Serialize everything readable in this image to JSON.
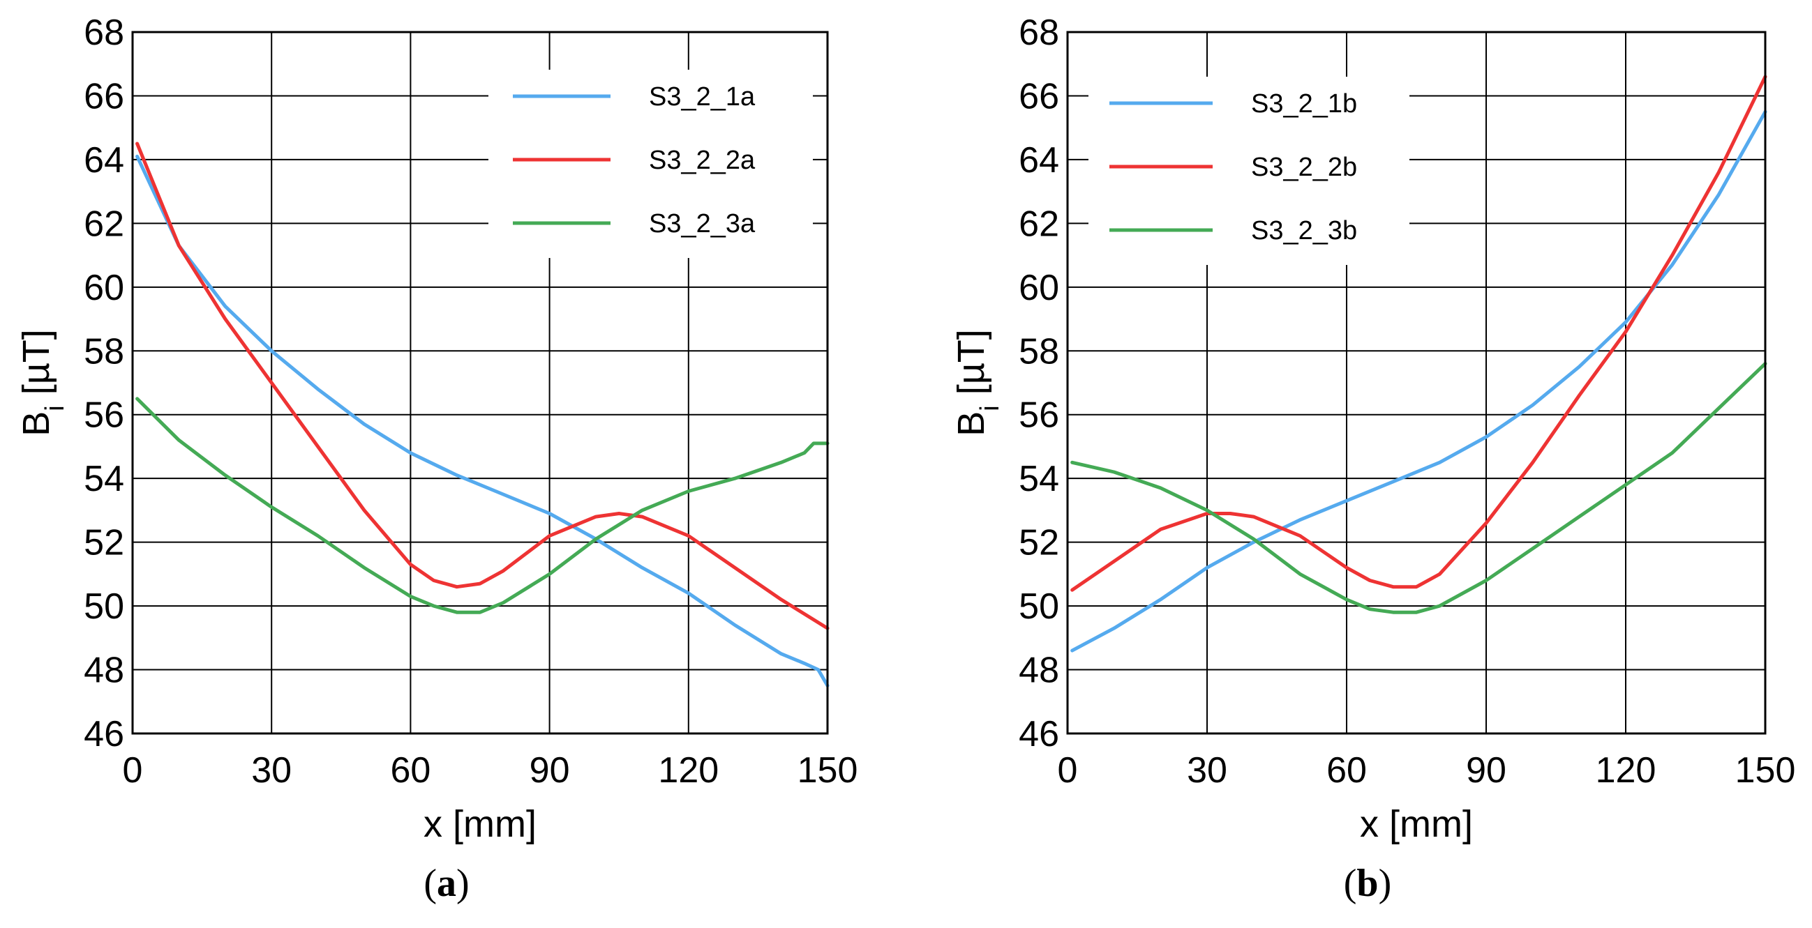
{
  "chart_data": [
    {
      "type": "line",
      "panel": "a",
      "caption_open": "(",
      "caption_letter": "a",
      "caption_close": ")",
      "xlabel": "x [mm]",
      "ylabel_main": "B",
      "ylabel_sub": "i",
      "ylabel_rest": " [µT]",
      "xlim": [
        0,
        150
      ],
      "ylim": [
        46,
        68
      ],
      "xticks": [
        0,
        30,
        60,
        90,
        120,
        150
      ],
      "yticks": [
        46,
        48,
        50,
        52,
        54,
        56,
        58,
        60,
        62,
        64,
        66,
        68
      ],
      "grid": true,
      "legend_position": "top-right",
      "series": [
        {
          "name": "S3_2_1a",
          "color": "#55aaee",
          "x": [
            1,
            10,
            20,
            30,
            40,
            50,
            60,
            70,
            80,
            90,
            100,
            110,
            120,
            130,
            140,
            145,
            148,
            150
          ],
          "y": [
            64.1,
            61.3,
            59.4,
            58.0,
            56.8,
            55.7,
            54.8,
            54.1,
            53.5,
            52.9,
            52.1,
            51.2,
            50.4,
            49.4,
            48.5,
            48.2,
            48.0,
            47.5
          ]
        },
        {
          "name": "S3_2_2a",
          "color": "#ee3333",
          "x": [
            1,
            10,
            20,
            30,
            40,
            50,
            60,
            65,
            70,
            75,
            80,
            90,
            100,
            105,
            110,
            120,
            130,
            140,
            150
          ],
          "y": [
            64.5,
            61.3,
            59.0,
            57.0,
            55.0,
            53.0,
            51.3,
            50.8,
            50.6,
            50.7,
            51.1,
            52.2,
            52.8,
            52.9,
            52.8,
            52.2,
            51.2,
            50.2,
            49.3
          ]
        },
        {
          "name": "S3_2_3a",
          "color": "#44aa55",
          "x": [
            1,
            10,
            20,
            30,
            40,
            50,
            60,
            65,
            70,
            75,
            80,
            90,
            100,
            110,
            120,
            130,
            140,
            145,
            147,
            150
          ],
          "y": [
            56.5,
            55.2,
            54.1,
            53.1,
            52.2,
            51.2,
            50.3,
            50.0,
            49.8,
            49.8,
            50.1,
            51.0,
            52.1,
            53.0,
            53.6,
            54.0,
            54.5,
            54.8,
            55.1,
            55.1
          ]
        }
      ]
    },
    {
      "type": "line",
      "panel": "b",
      "caption_open": "(",
      "caption_letter": "b",
      "caption_close": ")",
      "xlabel": "x [mm]",
      "ylabel_main": "B",
      "ylabel_sub": "i",
      "ylabel_rest": " [µT]",
      "xlim": [
        0,
        150
      ],
      "ylim": [
        46,
        68
      ],
      "xticks": [
        0,
        30,
        60,
        90,
        120,
        150
      ],
      "yticks": [
        46,
        48,
        50,
        52,
        54,
        56,
        58,
        60,
        62,
        64,
        66,
        68
      ],
      "grid": true,
      "legend_position": "top-left",
      "series": [
        {
          "name": "S3_2_1b",
          "color": "#55aaee",
          "x": [
            1,
            10,
            20,
            30,
            40,
            50,
            60,
            70,
            80,
            90,
            100,
            110,
            120,
            130,
            140,
            150
          ],
          "y": [
            48.6,
            49.3,
            50.2,
            51.2,
            52.0,
            52.7,
            53.3,
            53.9,
            54.5,
            55.3,
            56.3,
            57.5,
            58.9,
            60.7,
            62.9,
            65.5
          ]
        },
        {
          "name": "S3_2_2b",
          "color": "#ee3333",
          "x": [
            1,
            10,
            20,
            30,
            35,
            40,
            50,
            60,
            65,
            70,
            75,
            80,
            90,
            100,
            110,
            120,
            130,
            140,
            150
          ],
          "y": [
            50.5,
            51.4,
            52.4,
            52.9,
            52.9,
            52.8,
            52.2,
            51.2,
            50.8,
            50.6,
            50.6,
            51.0,
            52.6,
            54.5,
            56.6,
            58.6,
            61.0,
            63.6,
            66.6
          ]
        },
        {
          "name": "S3_2_3b",
          "color": "#44aa55",
          "x": [
            1,
            10,
            20,
            30,
            40,
            50,
            60,
            65,
            70,
            75,
            80,
            90,
            100,
            110,
            120,
            130,
            140,
            150
          ],
          "y": [
            54.5,
            54.2,
            53.7,
            53.0,
            52.1,
            51.0,
            50.2,
            49.9,
            49.8,
            49.8,
            50.0,
            50.8,
            51.8,
            52.8,
            53.8,
            54.8,
            56.2,
            57.6
          ]
        }
      ]
    }
  ]
}
